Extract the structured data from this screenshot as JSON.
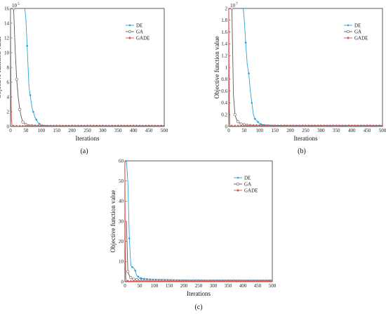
{
  "colors": {
    "DE": "#2aa3d8",
    "GA": "#5a5a5a",
    "GADE": "#e0504a"
  },
  "chart_data": [
    {
      "panel_label": "(a)",
      "type": "line",
      "xlabel": "Iterations",
      "ylabel": "Objective function value",
      "exponent": "10",
      "exponent_power": "5",
      "xlim": [
        0,
        500
      ],
      "ylim": [
        0,
        16
      ],
      "xticks": [
        0,
        50,
        100,
        150,
        200,
        250,
        300,
        350,
        400,
        450,
        500
      ],
      "yticks": [
        0,
        2,
        4,
        6,
        8,
        10,
        12,
        14,
        16
      ],
      "legend_position": "top-right",
      "series": [
        {
          "name": "DE",
          "marker": "dot",
          "x": [
            44,
            50,
            60,
            70,
            80,
            90,
            100,
            120,
            150,
            200,
            500
          ],
          "y": [
            17,
            14.6,
            5.4,
            2.5,
            1.2,
            0.5,
            0.15,
            0.05,
            0.02,
            0.01,
            0.01
          ]
        },
        {
          "name": "GA",
          "marker": "circle",
          "x": [
            10,
            15,
            20,
            25,
            30,
            35,
            40,
            50,
            60,
            80,
            100,
            500
          ],
          "y": [
            16,
            10.5,
            6.4,
            4,
            2.3,
            1.3,
            0.6,
            0.25,
            0.1,
            0.05,
            0.02,
            0.01
          ]
        },
        {
          "name": "GADE",
          "marker": "diamond",
          "x": [
            0,
            1,
            2,
            3,
            5,
            10,
            500
          ],
          "y": [
            16,
            8,
            3,
            1,
            0.2,
            0.02,
            0.01
          ]
        }
      ]
    },
    {
      "panel_label": "(b)",
      "type": "line",
      "xlabel": "Iterations",
      "ylabel": "Objective function value",
      "exponent": "10",
      "exponent_power": "7",
      "xlim": [
        0,
        500
      ],
      "ylim": [
        0,
        2
      ],
      "xticks": [
        0,
        50,
        100,
        150,
        200,
        250,
        300,
        350,
        400,
        450,
        500
      ],
      "yticks": [
        0,
        0.2,
        0.4,
        0.6,
        0.8,
        1,
        1.2,
        1.4,
        1.6,
        1.8,
        2
      ],
      "legend_position": "top-right",
      "series": [
        {
          "name": "DE",
          "marker": "dot",
          "x": [
            45,
            50,
            55,
            60,
            65,
            70,
            75,
            80,
            85,
            90,
            100,
            110,
            120,
            150,
            200,
            500
          ],
          "y": [
            2.1,
            1.84,
            1.42,
            1.05,
            0.9,
            0.6,
            0.4,
            0.2,
            0.13,
            0.1,
            0.05,
            0.03,
            0.02,
            0.01,
            0.005,
            0.005
          ]
        },
        {
          "name": "GA",
          "marker": "circle",
          "x": [
            10,
            15,
            20,
            25,
            30,
            35,
            40,
            50,
            60,
            70,
            80,
            100,
            120,
            150,
            500
          ],
          "y": [
            2,
            0.55,
            0.2,
            0.12,
            0.08,
            0.06,
            0.04,
            0.03,
            0.02,
            0.015,
            0.01,
            0.008,
            0.006,
            0.005,
            0.005
          ]
        },
        {
          "name": "GADE",
          "marker": "diamond",
          "x": [
            0,
            1,
            2,
            3,
            5,
            10,
            500
          ],
          "y": [
            2,
            1,
            0.3,
            0.05,
            0.01,
            0.005,
            0.005
          ]
        }
      ]
    },
    {
      "panel_label": "(c)",
      "type": "line",
      "xlabel": "Iterations",
      "ylabel": "Objective function value",
      "xlim": [
        0,
        500
      ],
      "ylim": [
        0,
        60
      ],
      "xticks": [
        0,
        50,
        100,
        150,
        200,
        250,
        300,
        350,
        400,
        450,
        500
      ],
      "yticks": [
        0,
        10,
        20,
        30,
        40,
        50,
        60
      ],
      "legend_position": "top-right",
      "series": [
        {
          "name": "DE",
          "marker": "dot",
          "x": [
            5,
            8,
            10,
            15,
            20,
            25,
            30,
            35,
            40,
            50,
            60,
            80,
            100,
            120,
            150,
            200,
            250,
            500
          ],
          "y": [
            60,
            54,
            49,
            21.5,
            8,
            7.2,
            6.8,
            5.5,
            3,
            2,
            1.5,
            1.2,
            1,
            0.9,
            0.8,
            0.6,
            0.5,
            0.5
          ]
        },
        {
          "name": "GA",
          "marker": "circle",
          "x": [
            5,
            10,
            15,
            20,
            25,
            30,
            40,
            50,
            60,
            80,
            100,
            150,
            200,
            500
          ],
          "y": [
            30,
            5,
            3,
            2,
            1.5,
            1.2,
            1,
            0.9,
            0.8,
            0.7,
            0.6,
            0.5,
            0.4,
            0.3
          ]
        },
        {
          "name": "GADE",
          "marker": "diamond",
          "x": [
            0,
            1,
            2,
            3,
            5,
            10,
            20,
            500
          ],
          "y": [
            60,
            20,
            8,
            2,
            0.5,
            0.2,
            0.1,
            0.1
          ]
        }
      ]
    }
  ]
}
